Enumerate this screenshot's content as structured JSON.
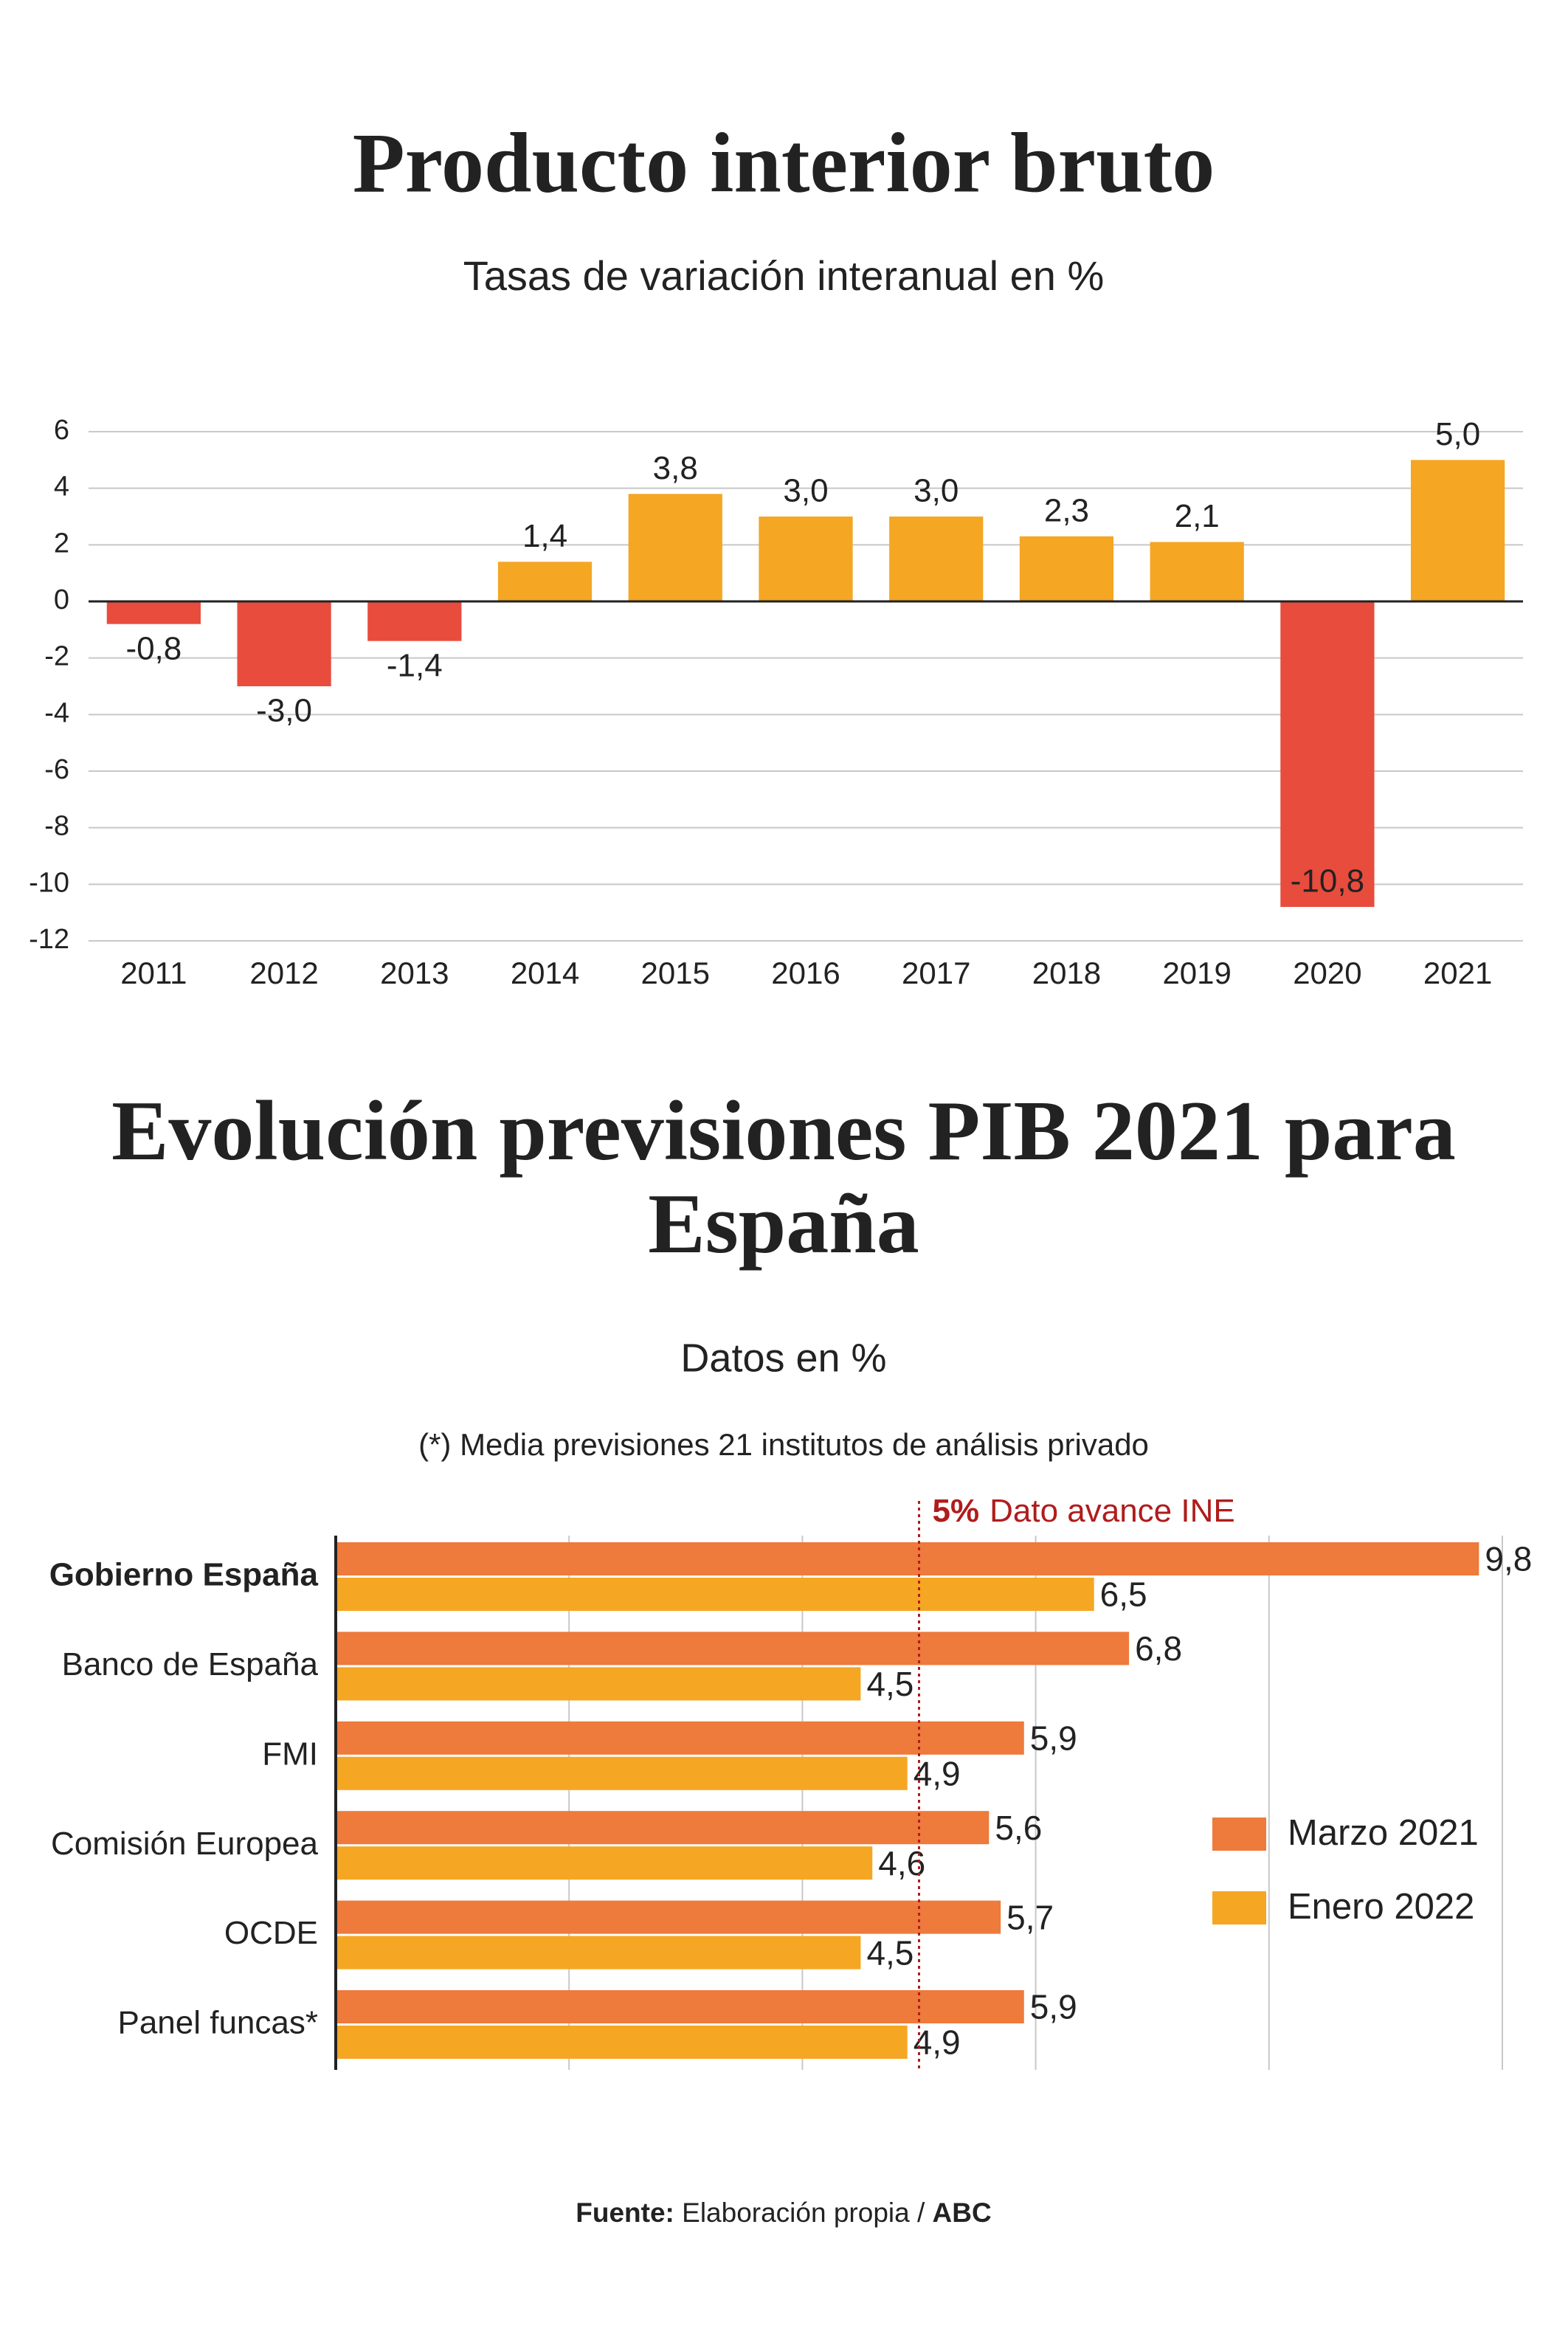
{
  "chart_data": [
    {
      "type": "bar",
      "title": "Producto interior bruto",
      "subtitle": "Tasas de variación interanual en %",
      "categories": [
        "2011",
        "2012",
        "2013",
        "2014",
        "2015",
        "2016",
        "2017",
        "2018",
        "2019",
        "2020",
        "2021"
      ],
      "values": [
        -0.8,
        -3.0,
        -1.4,
        1.4,
        3.8,
        3.0,
        3.0,
        2.3,
        2.1,
        -10.8,
        5.0
      ],
      "value_labels": [
        "-0,8",
        "-3,0",
        "-1,4",
        "1,4",
        "3,8",
        "3,0",
        "3,0",
        "2,3",
        "2,1",
        "-10,8",
        "5,0"
      ],
      "color": "#f5a623",
      "negative_color": "#e84c3d",
      "ylim": [
        -12,
        6
      ],
      "yticks": [
        -12,
        -10,
        -8,
        -6,
        -4,
        -2,
        0,
        2,
        4,
        6
      ],
      "grid": true
    },
    {
      "type": "barh",
      "title": "Evolución previsiones PIB 2021 para España",
      "subtitle": "Datos en %",
      "note": "(*) Media previsiones 21 institutos de análisis privado",
      "categories": [
        "Gobierno España",
        "Banco de España",
        "FMI",
        "Comisión Europea",
        "OCDE",
        "Panel funcas*"
      ],
      "bold_categories": [
        0
      ],
      "series": [
        {
          "name": "Marzo 2021",
          "color": "#ee7a3b",
          "values": [
            9.8,
            6.8,
            5.9,
            5.6,
            5.7,
            5.9
          ],
          "value_labels": [
            "9,8",
            "6,8",
            "5,9",
            "5,6",
            "5,7",
            "5,9"
          ]
        },
        {
          "name": "Enero 2022",
          "color": "#f5a623",
          "values": [
            6.5,
            4.5,
            4.9,
            4.6,
            4.5,
            4.9
          ],
          "value_labels": [
            "6,5",
            "4,5",
            "4,9",
            "4,6",
            "4,5",
            "4,9"
          ]
        }
      ],
      "xlim": [
        0,
        10
      ],
      "xticks": [
        2,
        4,
        6,
        8,
        10
      ],
      "grid": true,
      "reference": {
        "value": 5,
        "label": "5%",
        "text": "Dato avance INE",
        "color": "#b01c1c"
      },
      "legend": "right"
    }
  ],
  "source": {
    "label": "Fuente:",
    "text": "Elaboración propia /",
    "brand": "ABC"
  }
}
